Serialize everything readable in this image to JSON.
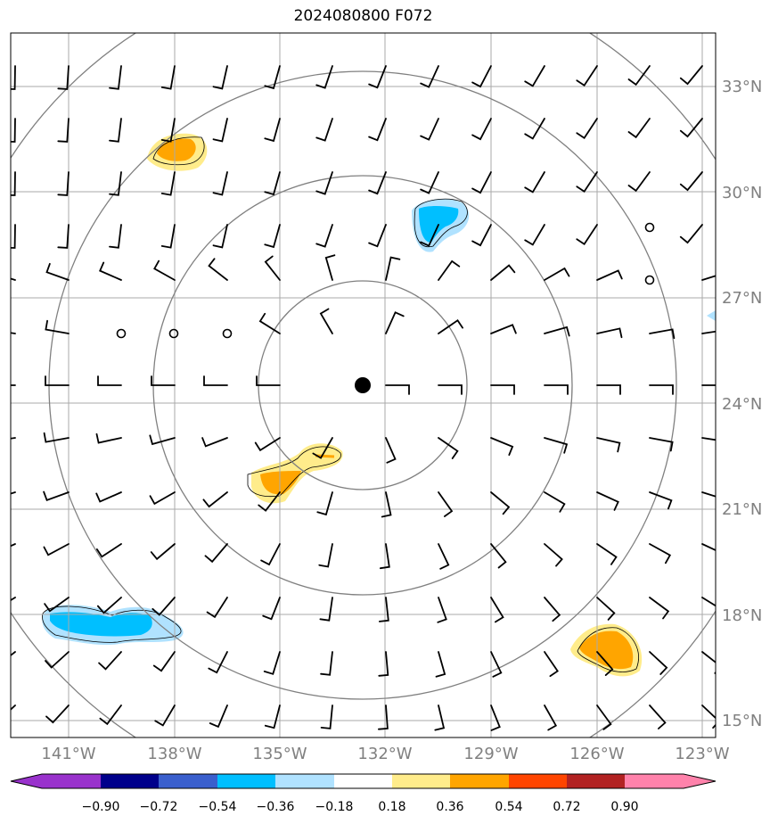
{
  "title": "2024080800 F072",
  "lat_labels": [
    "33°N",
    "30°N",
    "27°N",
    "24°N",
    "21°N",
    "18°N",
    "15°N"
  ],
  "lon_labels": [
    "141°W",
    "138°W",
    "135°W",
    "132°W",
    "129°W",
    "126°W",
    "123°W"
  ],
  "colorbar": {
    "ticks": [
      "−0.90",
      "−0.72",
      "−0.54",
      "−0.36",
      "−0.18",
      "0.18",
      "0.36",
      "0.54",
      "0.72",
      "0.90"
    ],
    "colors": [
      "#9932cc",
      "#00008b",
      "#3a5fcd",
      "#00bfff",
      "#b0e2ff",
      "#ffffff",
      "#ffec8b",
      "#ffa500",
      "#ff4500",
      "#b22222",
      "#ff82ab"
    ]
  },
  "colors": {
    "grid": "#aaaaaa",
    "range_ring": "#808080",
    "label": "#808080",
    "barb": "#000000"
  },
  "map_elements": {
    "range_rings": 4,
    "center_marker": "filled-circle",
    "wind_barbs": true
  }
}
